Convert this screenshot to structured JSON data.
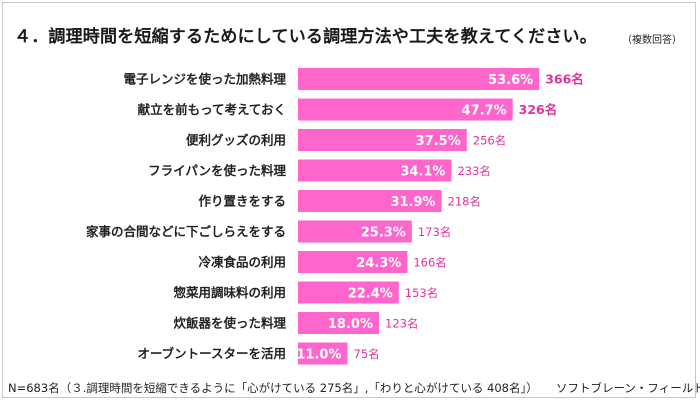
{
  "title": "４．調理時間を短縮するためにしている調理方法や工夫を教えてください。",
  "title_note": "（複数回答）",
  "footnote": "N=683名（３.調理時間を短縮できるように「心がけている 275名」,「わりと心がけている 408名」）",
  "source": "ソフトブレーン・フィールド調べ",
  "colors": {
    "bar": "#ff66cc",
    "percent_label": "#ffffff",
    "count_label": "#e0349a"
  },
  "chart_data": {
    "type": "bar",
    "orientation": "horizontal",
    "categories": [
      "電子レンジを使った加熱料理",
      "献立を前もって考えておく",
      "便利グッズの利用",
      "フライパンを使った料理",
      "作り置きをする",
      "家事の合間などに下ごしらえをする",
      "冷凍食品の利用",
      "惣菜用調味料の利用",
      "炊飯器を使った料理",
      "オーブントースターを活用"
    ],
    "series": [
      {
        "values": [
          53.6,
          47.7,
          37.5,
          34.1,
          31.9,
          25.3,
          24.3,
          22.4,
          18.0,
          11.0
        ],
        "labels": [
          "53.6%",
          "47.7%",
          "37.5%",
          "34.1%",
          "31.9%",
          "25.3%",
          "24.3%",
          "22.4%",
          "18.0%",
          "11.0%"
        ],
        "counts": [
          "366名",
          "326名",
          "256名",
          "233名",
          "218名",
          "173名",
          "166名",
          "153名",
          "123名",
          "75名"
        ]
      }
    ],
    "highlight_count_top": 2,
    "xlim": [
      0,
      60
    ],
    "grid": false,
    "legend": "none"
  }
}
